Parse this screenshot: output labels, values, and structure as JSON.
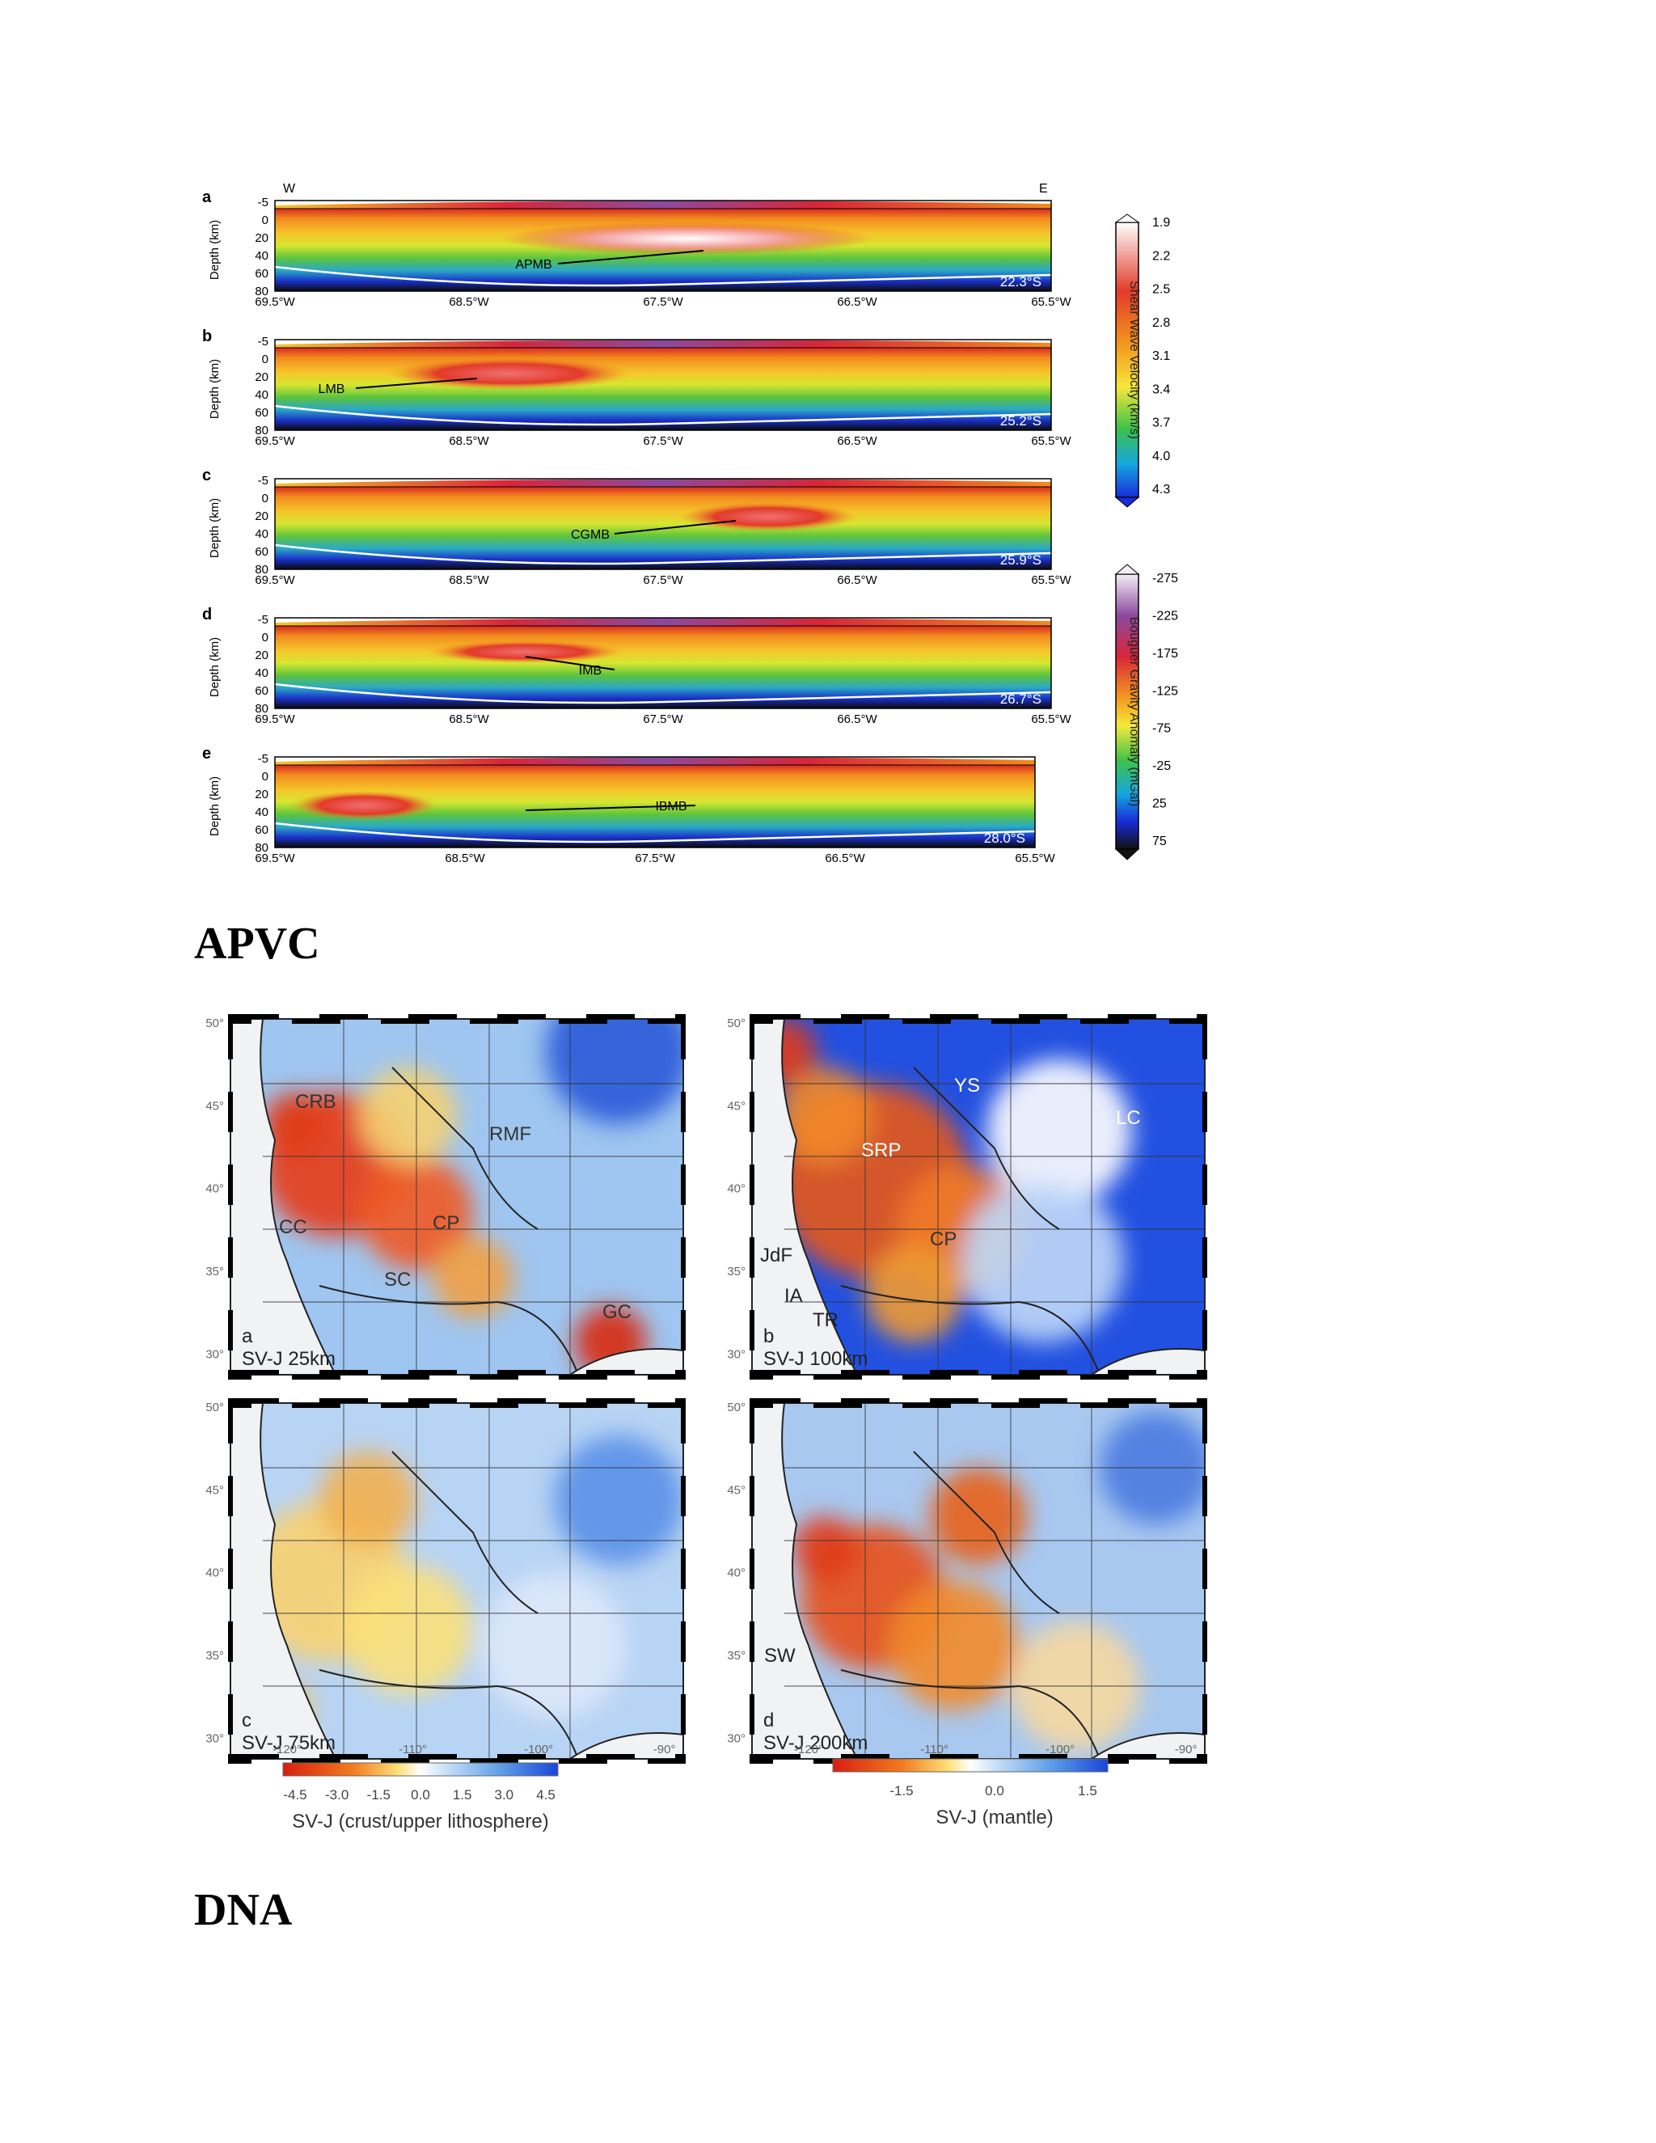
{
  "figure1": {
    "panels": [
      {
        "letter": "a",
        "lat": "22.3°S",
        "label": "APMB",
        "w": "W",
        "e": "E"
      },
      {
        "letter": "b",
        "lat": "25.2°S",
        "label": "LMB"
      },
      {
        "letter": "c",
        "lat": "25.9°S",
        "label": "CGMB"
      },
      {
        "letter": "d",
        "lat": "26.7°S",
        "label": "IMB"
      },
      {
        "letter": "e",
        "lat": "28.0°S",
        "label": "IBMB"
      }
    ],
    "depth_axis_label": "Depth (km)",
    "depth_ticks": [
      "-5",
      "0",
      "20",
      "40",
      "60",
      "80"
    ],
    "lon_ticks": [
      "69.5°W",
      "68.5°W",
      "67.5°W",
      "66.5°W",
      "65.5°W"
    ],
    "colorbar_velocity": {
      "label": "Shear Wave Velocity (km/s)",
      "ticks": [
        "1.9",
        "2.2",
        "2.5",
        "2.8",
        "3.1",
        "3.4",
        "3.7",
        "4.0",
        "4.3"
      ]
    },
    "colorbar_gravity": {
      "label": "Bouguer Gravity Anomaly (mGal)",
      "ticks": [
        "-275",
        "-225",
        "-175",
        "-125",
        "-75",
        "-25",
        "25",
        "75"
      ]
    }
  },
  "heading1": "APVC",
  "figure2": {
    "lat_ticks": [
      "50°",
      "45°",
      "40°",
      "35°",
      "30°"
    ],
    "lon_ticks": [
      "-120°",
      "-110°",
      "-100°",
      "-90°"
    ],
    "maps": [
      {
        "letter": "a",
        "title": "SV-J 25km",
        "features": [
          "CRB",
          "RMF",
          "CP",
          "SC",
          "GC",
          "CC"
        ]
      },
      {
        "letter": "b",
        "title": "SV-J 100km",
        "features": [
          "YS",
          "LC",
          "SRP",
          "CP",
          "JdF",
          "IA",
          "TR"
        ]
      },
      {
        "letter": "c",
        "title": "SV-J 75km",
        "features": []
      },
      {
        "letter": "d",
        "title": "SV-J 200km",
        "features": [
          "SW"
        ]
      }
    ],
    "colorbar_left": {
      "label": "SV-J (crust/upper lithosphere)",
      "ticks": [
        "-4.5",
        "-3.0",
        "-1.5",
        "0.0",
        "1.5",
        "3.0",
        "4.5"
      ]
    },
    "colorbar_right": {
      "label": "SV-J (mantle)",
      "ticks": [
        "-1.5",
        "0.0",
        "1.5"
      ]
    }
  },
  "heading2": "DNA"
}
